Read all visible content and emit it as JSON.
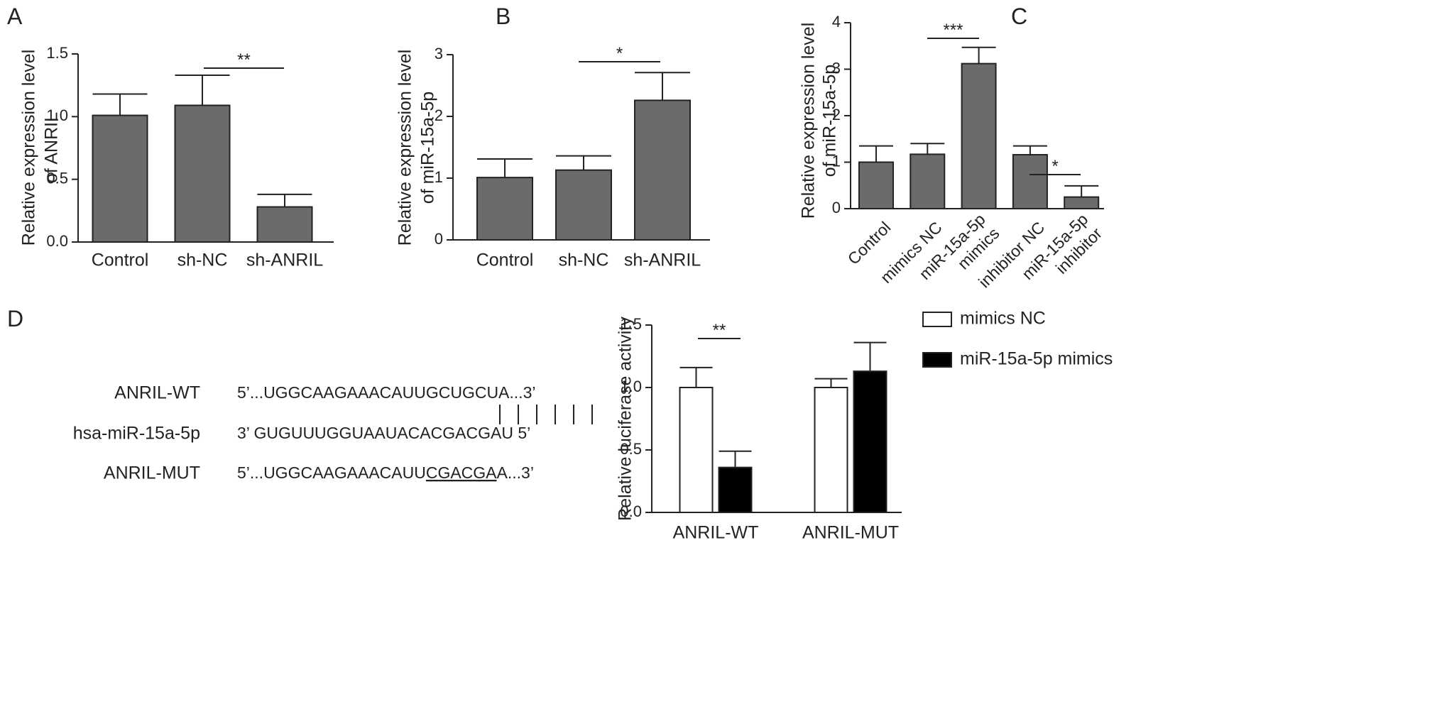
{
  "chart_data": [
    {
      "type": "bar",
      "panel_label": "A",
      "ylabel": [
        "Relative expression level",
        "of ANRIL"
      ],
      "categories": [
        [
          "Control"
        ],
        [
          "sh-NC"
        ],
        [
          "sh-ANRIL"
        ]
      ],
      "values": [
        1.01,
        1.09,
        0.28
      ],
      "errors": [
        0.17,
        0.24,
        0.1
      ],
      "color": "#6b6b6b",
      "ylim": [
        0,
        1.5
      ],
      "yticks": [
        {
          "value": 0,
          "label": "0.0"
        },
        0.5,
        {
          "value": 1,
          "label": "1.0"
        },
        1.5
      ],
      "annotations": [
        {
          "text": "**"
        }
      ]
    },
    {
      "type": "bar",
      "panel_label": "B",
      "ylabel": [
        "Relative expression level",
        "of miR-15a-5p"
      ],
      "categories": [
        [
          "Control"
        ],
        [
          "sh-NC"
        ],
        [
          "sh-ANRIL"
        ]
      ],
      "values": [
        1.01,
        1.13,
        2.26
      ],
      "errors": [
        0.3,
        0.23,
        0.45
      ],
      "color": "#6b6b6b",
      "ylim": [
        0,
        3
      ],
      "yticks": [
        0,
        1,
        2,
        3
      ],
      "annotations": [
        {
          "text": "*"
        }
      ]
    },
    {
      "type": "bar",
      "panel_label": "C",
      "ylabel": [
        "Relative expression level",
        "of miR-15a-5p"
      ],
      "categories": [
        [
          "Control"
        ],
        [
          "mimics NC"
        ],
        [
          "miR-15a-5p",
          "mimics"
        ],
        [
          "inhibitor NC"
        ],
        [
          "miR-15a-5p",
          "inhibitor"
        ]
      ],
      "values": [
        1.0,
        1.17,
        3.12,
        1.16,
        0.25
      ],
      "errors": [
        0.35,
        0.23,
        0.35,
        0.19,
        0.24
      ],
      "color": "#6b6b6b",
      "ylim": [
        0,
        4
      ],
      "yticks": [
        0,
        1,
        2,
        3,
        4
      ],
      "annotations": [
        {
          "text": "***"
        },
        {
          "text": "*"
        }
      ]
    },
    {
      "type": "grouped_bar",
      "ylabel": [
        "Relative luciferase activity"
      ],
      "categories": [
        [
          "ANRIL-WT"
        ],
        [
          "ANRIL-MUT"
        ]
      ],
      "series": [
        {
          "name": "mimics NC",
          "color": "#ffffff",
          "values": [
            1.0,
            1.0
          ],
          "errors": [
            0.16,
            0.07
          ]
        },
        {
          "name": "miR-15a-5p mimics",
          "color": "#000000",
          "values": [
            0.36,
            1.13
          ],
          "errors": [
            0.13,
            0.23
          ]
        }
      ],
      "ylim": [
        0,
        1.5
      ],
      "yticks": [
        {
          "value": 0,
          "label": "0.0"
        },
        0.5,
        {
          "value": 1,
          "label": "1.0"
        },
        1.5
      ],
      "legend": "upper right",
      "annotations": [
        {
          "text": "**"
        }
      ]
    }
  ],
  "sequence_panel": {
    "panel_label": "D",
    "rows": [
      {
        "label": "ANRIL-WT",
        "sequence": [
          "5’...UGGCAAGAAACAUUGCUGCUA...3’"
        ]
      },
      {
        "label": "hsa-miR-15a-5p",
        "sequence": [
          "3’ GUGUUUGGUAAUACACGACGAU 5’"
        ]
      },
      {
        "label": "ANRIL-MUT",
        "sequence": [
          "5’...UGGCAAGAAACAUU",
          "CGACGA",
          "A...3’"
        ]
      }
    ]
  }
}
